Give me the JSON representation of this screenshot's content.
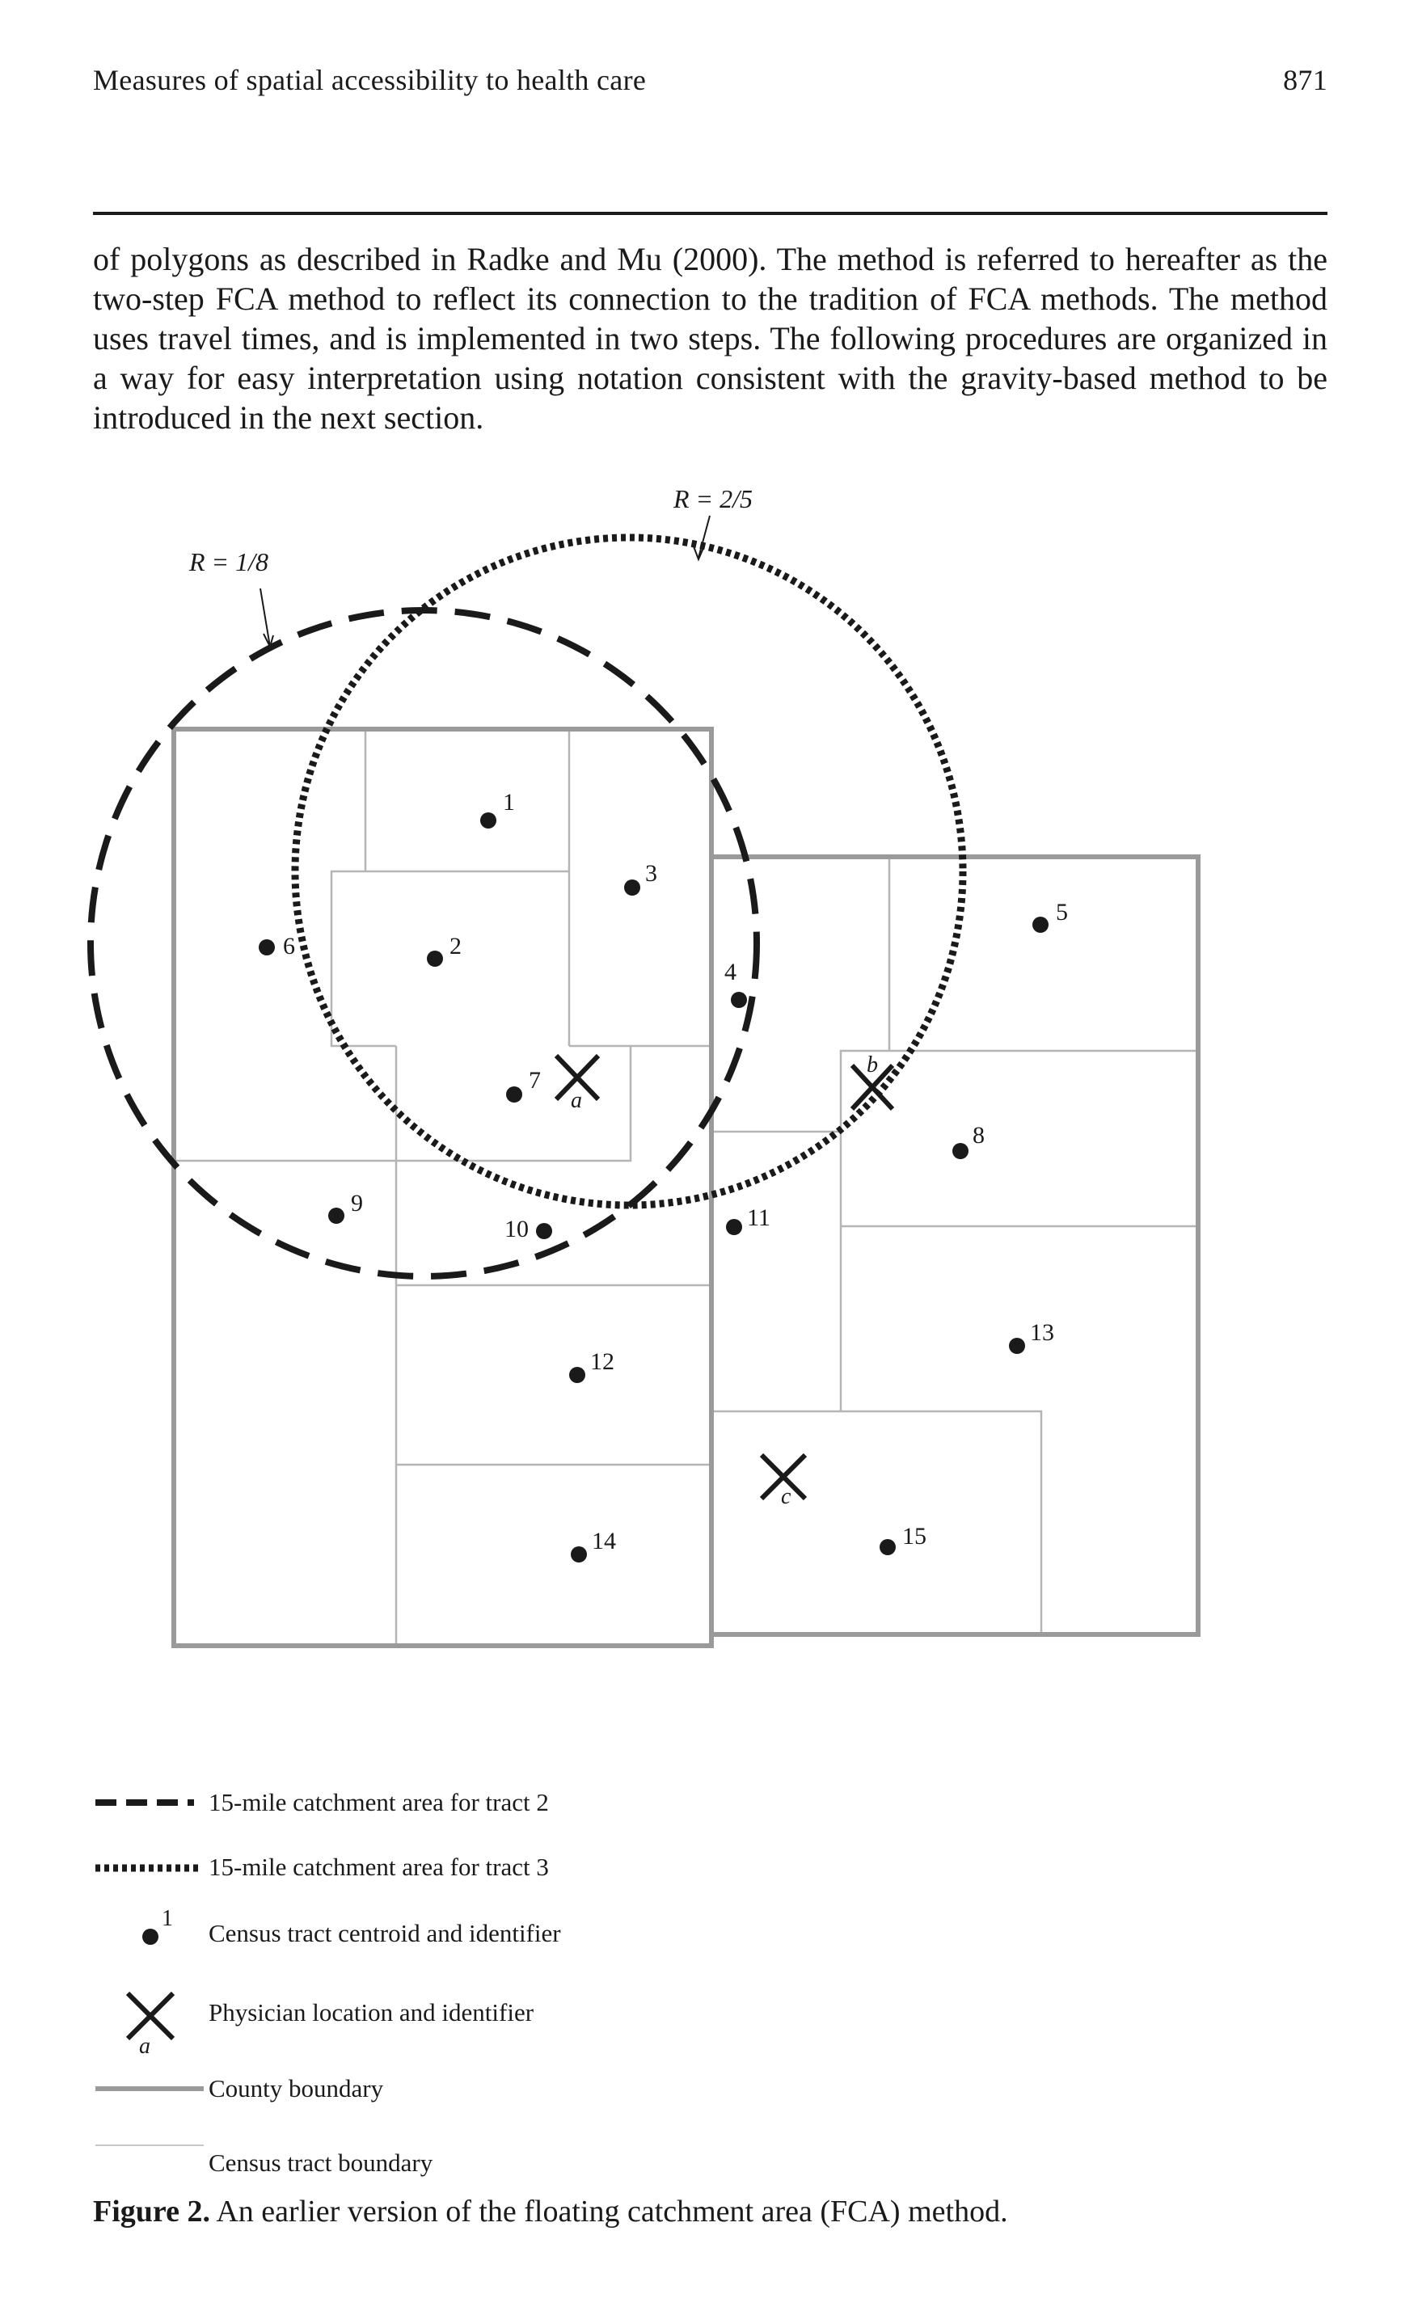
{
  "header": {
    "running_title": "Measures of spatial accessibility to health care",
    "page_number": "871"
  },
  "body": {
    "paragraph": "of polygons as described in Radke and Mu (2000). The method is referred to hereafter as the two-step FCA method to reflect its connection to the tradition of FCA methods. The method uses travel times, and is implemented in two steps. The following procedures are organized in a way for easy interpretation using notation consistent with the gravity-based method to be introduced in the next section."
  },
  "figure": {
    "ratio_labels": [
      "R = 1/8",
      "R = 2/5"
    ],
    "tract_ids": [
      "1",
      "2",
      "3",
      "4",
      "5",
      "6",
      "7",
      "8",
      "9",
      "10",
      "11",
      "12",
      "13",
      "14",
      "15"
    ],
    "physician_ids": [
      "a",
      "b",
      "c"
    ],
    "legend": {
      "dashed": "15-mile catchment area for tract 2",
      "dotted": "15-mile catchment area for tract 3",
      "centroid_id": "1",
      "centroid": "Census tract centroid and identifier",
      "physician_id": "a",
      "physician": "Physician location and identifier",
      "county": "County boundary",
      "tract": "Census tract boundary"
    },
    "colors": {
      "county": "#9a9a9a",
      "tract": "#b5b5b5",
      "ink": "#1a1a1a"
    }
  },
  "caption": {
    "label": "Figure 2.",
    "text": "An earlier version of the floating catchment area (FCA) method."
  }
}
